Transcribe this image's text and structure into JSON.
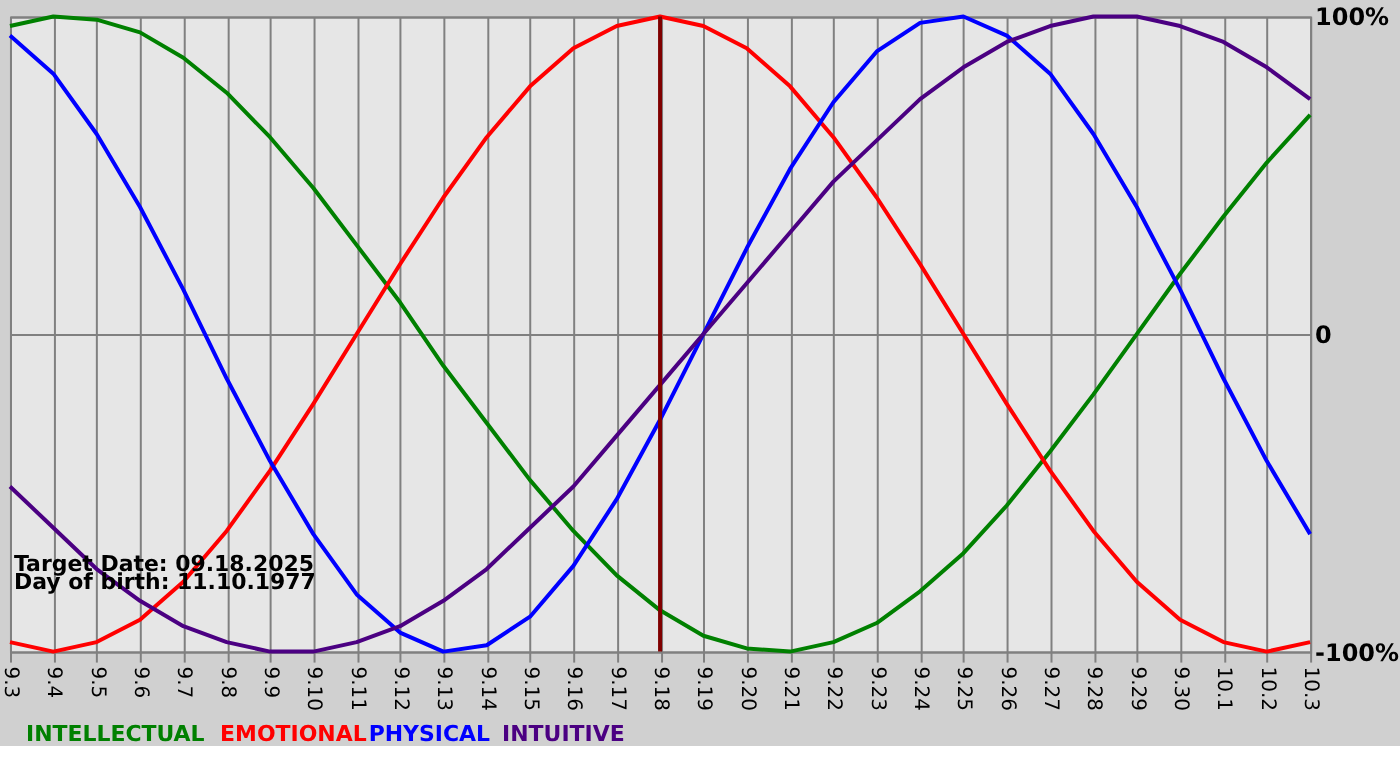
{
  "chart_data": {
    "type": "line",
    "categories": [
      "9.3",
      "9.4",
      "9.5",
      "9.6",
      "9.7",
      "9.8",
      "9.9",
      "9.10",
      "9.11",
      "9.12",
      "9.13",
      "9.14",
      "9.15",
      "9.16",
      "9.17",
      "9.18",
      "9.19",
      "9.20",
      "9.21",
      "9.22",
      "9.23",
      "9.24",
      "9.25",
      "9.26",
      "9.27",
      "9.28",
      "9.29",
      "9.30",
      "10.1",
      "10.2",
      "10.3"
    ],
    "series": [
      {
        "name": "INTELLECTUAL",
        "color": "#008000",
        "values": [
          97,
          100,
          99,
          95,
          87,
          76,
          62,
          46,
          28,
          10,
          -10,
          -28,
          -46,
          -62,
          -76,
          -87,
          -95,
          -99,
          -100,
          -97,
          -91,
          -81,
          -69,
          -54,
          -37,
          -19,
          0,
          19,
          37,
          54,
          69
        ]
      },
      {
        "name": "EMOTIONAL",
        "color": "#ff0000",
        "values": [
          -97,
          -100,
          -97,
          -90,
          -78,
          -62,
          -43,
          -22,
          0,
          22,
          43,
          62,
          78,
          90,
          97,
          100,
          97,
          90,
          78,
          62,
          43,
          22,
          0,
          -22,
          -43,
          -62,
          -78,
          -90,
          -97,
          -100,
          -97
        ]
      },
      {
        "name": "PHYSICAL",
        "color": "#0000ff",
        "values": [
          94,
          82,
          63,
          40,
          14,
          -14,
          -40,
          -63,
          -82,
          -94,
          -100,
          -98,
          -89,
          -73,
          -52,
          -27,
          0,
          27,
          52,
          73,
          89,
          98,
          100,
          94,
          82,
          63,
          40,
          14,
          -14,
          -40,
          -63
        ]
      },
      {
        "name": "INTUITIVE",
        "color": "#4b0082",
        "values": [
          -48,
          -61,
          -74,
          -84,
          -92,
          -97,
          -100,
          -100,
          -97,
          -92,
          -84,
          -74,
          -61,
          -48,
          -32,
          -16,
          0,
          16,
          32,
          48,
          61,
          74,
          84,
          92,
          97,
          100,
          100,
          97,
          92,
          84,
          74
        ]
      }
    ],
    "ylim": [
      -100,
      100
    ],
    "yticks": [
      {
        "value": -100,
        "label": "-100%"
      },
      0,
      {
        "value": 100,
        "label": "100%"
      }
    ],
    "ref_lines": [
      {
        "axis": "x",
        "value": "9.18",
        "color": "#800000"
      }
    ],
    "annotations": [
      "Target Date: 09.18.2025",
      "Day of birth: 11.10.1977"
    ],
    "grid": true,
    "legend": "bottom left",
    "marker": "none",
    "line_style": "solid"
  }
}
